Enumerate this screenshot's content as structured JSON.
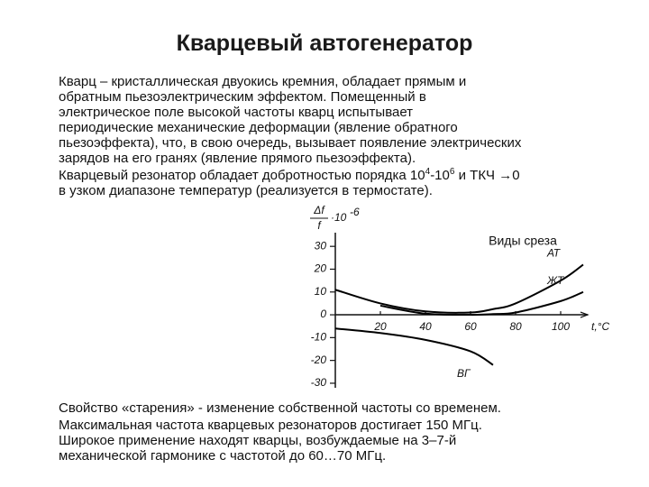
{
  "slide": {
    "title": "Кварцевый автогенератор",
    "bullets_top": [
      {
        "lines": [
          [
            {
              "text": "Кварц – кристаллическая двуокись кремния, обладает прямым и"
            }
          ],
          [
            {
              "text": "обратным пьезоэлектрическим эффектом. Помещенный  в"
            }
          ],
          [
            {
              "text": "электрическое поле высокой частоты кварц испытывает"
            }
          ],
          [
            {
              "text": "периодические механические деформации (явление обратного"
            }
          ],
          [
            {
              "text": "пьезоэффекта), что, в свою очередь, вызывает появление электрических"
            }
          ],
          [
            {
              "text": "зарядов на его гранях (явление прямого пьезоэффекта)."
            }
          ]
        ]
      },
      {
        "lines": [
          [
            {
              "text": "Кварцевый резонатор обладает добротностью порядка 10"
            },
            {
              "sup": "4"
            },
            {
              "text": "-10"
            },
            {
              "sup": "6"
            },
            {
              "text": " и ТКЧ →0"
            }
          ],
          [
            {
              "text": "в узком диапазоне температур (реализуется в термостате)."
            }
          ]
        ]
      }
    ],
    "bullets_bottom": [
      {
        "lines": [
          [
            {
              "text": "Свойство «старения» - изменение собственной частоты со временем."
            }
          ]
        ]
      },
      {
        "lines": [
          [
            {
              "text": "Максимальная частота кварцевых  резонаторов достигает 150 МГц."
            }
          ],
          [
            {
              "text": "Широкое применение находят кварцы, возбуждаемые на 3–7-й"
            }
          ],
          [
            {
              "text": "механической гармонике с частотой до 60…70 МГц."
            }
          ]
        ]
      }
    ]
  },
  "chart_data": {
    "type": "line",
    "note": "Виды среза",
    "ylabel_num": "Δf",
    "ylabel_den": "f",
    "ylabel_scale": "·10",
    "ylabel_exp": "-6",
    "xlabel": "t,°C",
    "x": [
      0,
      20,
      40,
      60,
      70,
      80,
      100,
      110
    ],
    "series": [
      {
        "name": "АТ",
        "color": "#000000",
        "values": [
          11,
          5,
          1.5,
          1,
          2.5,
          5,
          15,
          22
        ]
      },
      {
        "name": "ЖТ",
        "color": "#000000",
        "values": [
          null,
          4,
          0.5,
          0,
          0.3,
          1,
          6,
          10
        ]
      },
      {
        "name": "ВГ",
        "color": "#000000",
        "values": [
          -6,
          -8,
          -11,
          -16,
          -22,
          null,
          null,
          null
        ]
      }
    ],
    "xlim": [
      0,
      112
    ],
    "ylim": [
      -32,
      36
    ],
    "xticks": [
      20,
      40,
      60,
      80,
      100
    ],
    "yticks": [
      30,
      20,
      10,
      0,
      -10,
      -20,
      -30
    ]
  }
}
